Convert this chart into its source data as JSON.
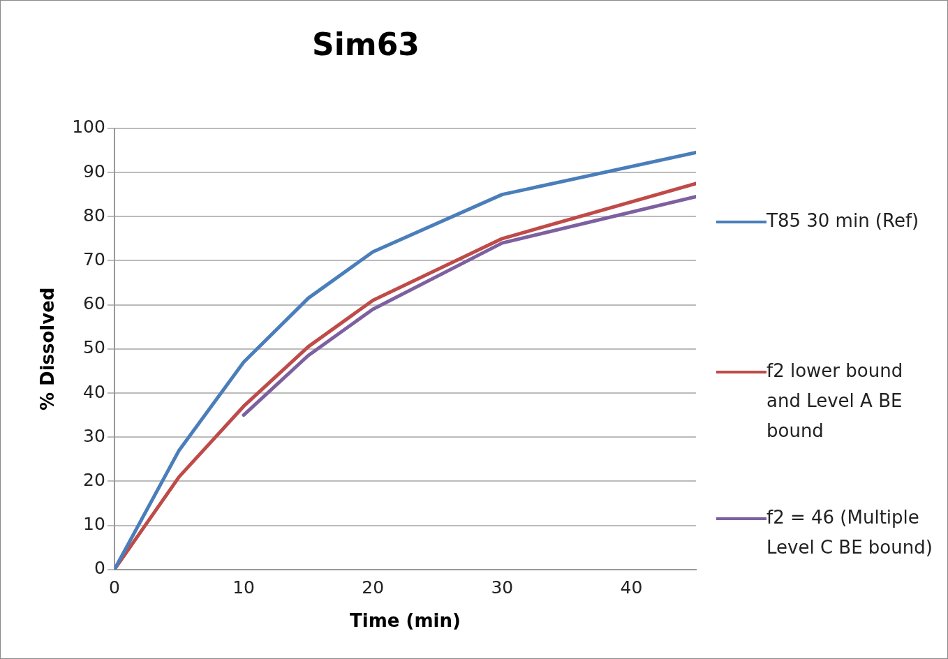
{
  "chart_data": {
    "type": "line",
    "title": "Sim63",
    "xlabel": "Time (min)",
    "ylabel": "% Dissolved",
    "xlim": [
      0,
      45
    ],
    "xticks": [
      0,
      10,
      20,
      30,
      40
    ],
    "ylim": [
      0,
      100
    ],
    "yticks": [
      0,
      10,
      20,
      30,
      40,
      50,
      60,
      70,
      80,
      90,
      100
    ],
    "grid": "y",
    "legend": "right",
    "marker": "none",
    "line_style": "solid",
    "series": [
      {
        "name": "T85 30 min (Ref)",
        "color": "#4a7ebb",
        "x": [
          0,
          5,
          10,
          15,
          20,
          30,
          45
        ],
        "values": [
          0,
          27,
          47,
          61.5,
          72,
          85,
          94.5
        ]
      },
      {
        "name": "f2 lower bound and Level A BE bound",
        "color": "#be4b48",
        "x": [
          0,
          5,
          10,
          15,
          20,
          30,
          45
        ],
        "values": [
          0,
          21,
          37,
          50.5,
          61,
          75,
          87.5
        ]
      },
      {
        "name": "f2 = 46 (Multiple Level C BE bound)",
        "color": "#7d60a0",
        "x": [
          10,
          15,
          20,
          30,
          45
        ],
        "values": [
          35,
          48.5,
          59,
          74,
          84.5
        ]
      }
    ]
  }
}
